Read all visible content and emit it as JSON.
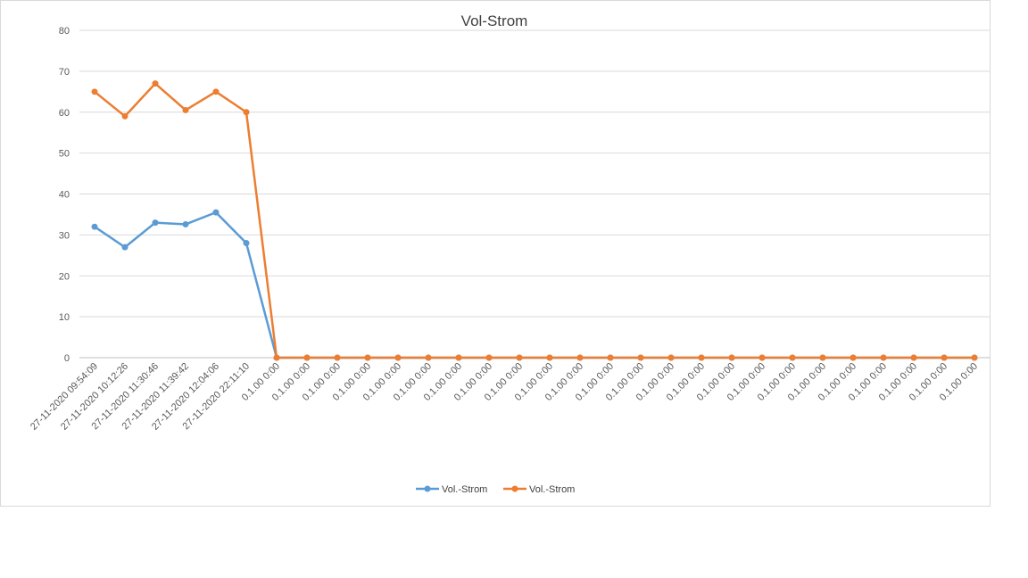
{
  "chart_data": {
    "type": "line",
    "title": "Vol-Strom",
    "xlabel": "",
    "ylabel": "",
    "ylim": [
      0,
      80
    ],
    "yticks": [
      0,
      10,
      20,
      30,
      40,
      50,
      60,
      70,
      80
    ],
    "grid": true,
    "legend_position": "bottom",
    "categories": [
      "27-11-2020 09:54:09",
      "27-11-2020 10:12:26",
      "27-11-2020 11:30:46",
      "27-11-2020 11:39:42",
      "27-11-2020 12:04:06",
      "27-11-2020 22:11:10",
      "0.1.00 0:00",
      "0.1.00 0:00",
      "0.1.00 0:00",
      "0.1.00 0:00",
      "0.1.00 0:00",
      "0.1.00 0:00",
      "0.1.00 0:00",
      "0.1.00 0:00",
      "0.1.00 0:00",
      "0.1.00 0:00",
      "0.1.00 0:00",
      "0.1.00 0:00",
      "0.1.00 0:00",
      "0.1.00 0:00",
      "0.1.00 0:00",
      "0.1.00 0:00",
      "0.1.00 0:00",
      "0.1.00 0:00",
      "0.1.00 0:00",
      "0.1.00 0:00",
      "0.1.00 0:00",
      "0.1.00 0:00",
      "0.1.00 0:00",
      "0.1.00 0:00"
    ],
    "series": [
      {
        "name": "Vol.-Strom",
        "color": "#5b9bd5",
        "values": [
          32,
          27,
          33,
          32.6,
          35.5,
          28,
          0,
          0,
          0,
          0,
          0,
          0,
          0,
          0,
          0,
          0,
          0,
          0,
          0,
          0,
          0,
          0,
          0,
          0,
          0,
          0,
          0,
          0,
          0,
          0
        ]
      },
      {
        "name": "Vol.-Strom",
        "color": "#ed7d31",
        "values": [
          65,
          59,
          67,
          60.5,
          65,
          60,
          0,
          0,
          0,
          0,
          0,
          0,
          0,
          0,
          0,
          0,
          0,
          0,
          0,
          0,
          0,
          0,
          0,
          0,
          0,
          0,
          0,
          0,
          0,
          0
        ]
      }
    ]
  }
}
